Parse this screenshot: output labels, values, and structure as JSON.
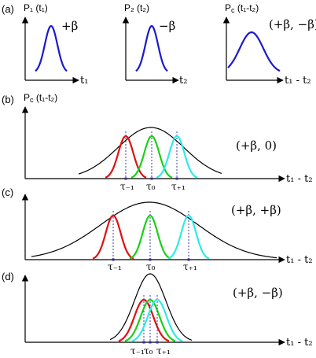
{
  "colors": {
    "blue": "#1a1acc",
    "red": "#e01010",
    "green": "#18d018",
    "cyan": "#30e8e8",
    "black": "#000000",
    "dash": "#2a2aa0"
  },
  "top_row": {
    "panel_label": "(a)",
    "plot1": {
      "y_label": "P₁ (t₁)",
      "x_label": "t₁",
      "sign": "+β"
    },
    "plot2": {
      "y_label": "P₂ (t₂)",
      "x_label": "t₂",
      "sign": "−β"
    },
    "plot3": {
      "y_label": "P",
      "y_sub": "c",
      "y_arg": " (t₁-t₂)",
      "x_label": "t₁ - t₂",
      "sign": "(+β, −β)"
    }
  },
  "panels": [
    {
      "id": "b",
      "panel_label": "(b)",
      "y_label": "P",
      "y_sub": "c",
      "y_arg": " (t₁-t₂)",
      "x_label": "t₁ - t₂",
      "condition": "(+β, 0)",
      "taus": [
        "τ₋₁",
        "τ₀",
        "τ₊₁"
      ]
    },
    {
      "id": "c",
      "panel_label": "(c)",
      "x_label": "t₁ - t₂",
      "condition": "(+β, +β)",
      "taus": [
        "τ₋₁",
        "τ₀",
        "τ₊₁"
      ]
    },
    {
      "id": "d",
      "panel_label": "(d)",
      "x_label": "t₁ - t₂",
      "condition": "(+β, −β)",
      "taus": [
        "τ₋₁",
        "τ₀",
        "τ₊₁"
      ]
    }
  ]
}
